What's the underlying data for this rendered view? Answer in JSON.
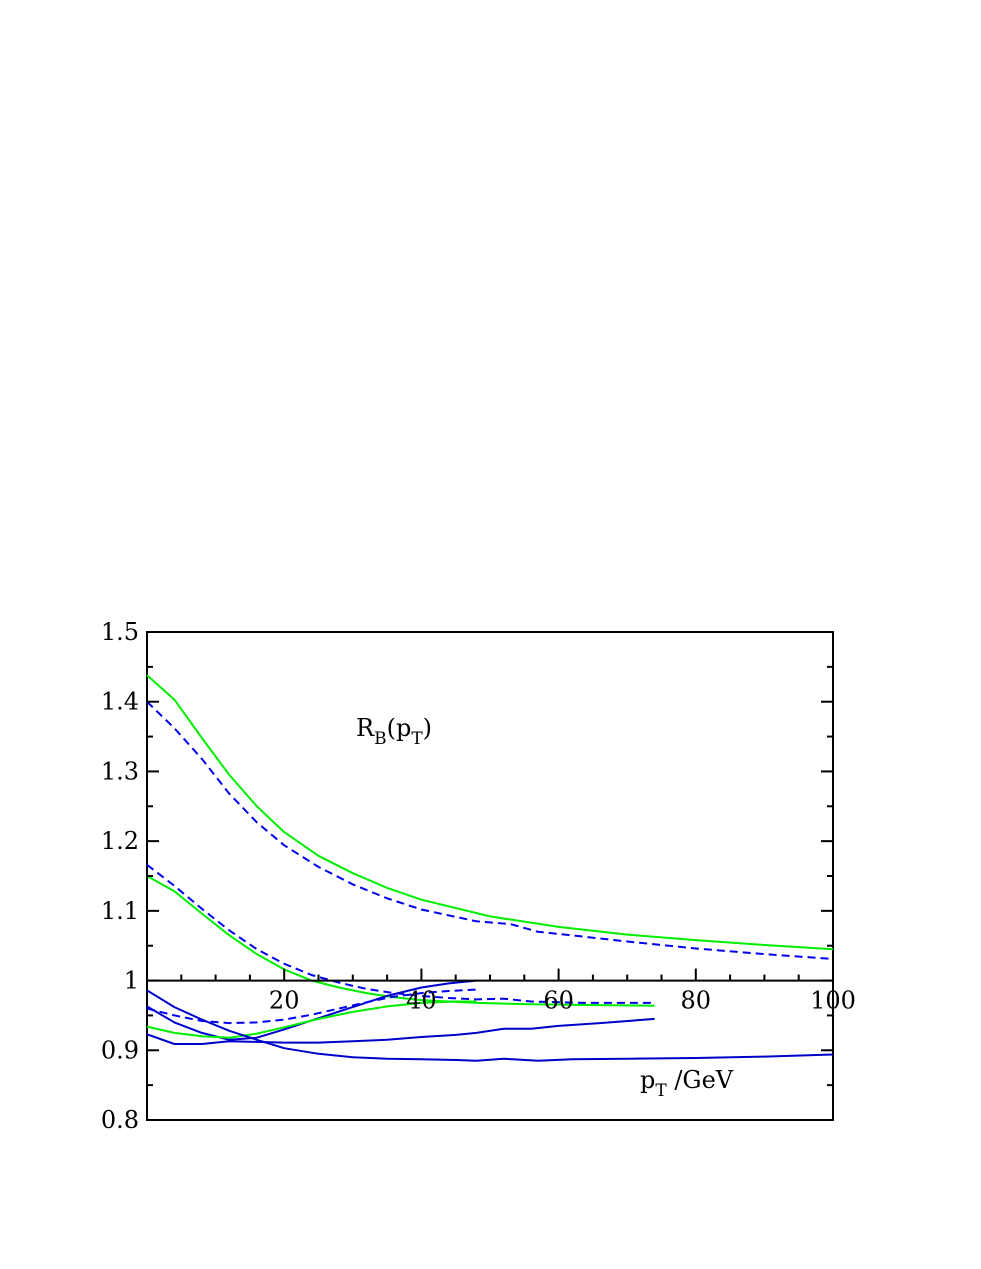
{
  "chart_data": {
    "type": "line",
    "title": "",
    "xlabel": {
      "main": "p",
      "sub": "T",
      "tail": " /GeV"
    },
    "ylabel": {
      "main": "R",
      "sub": "B",
      "open": "(p",
      "sub2": "T",
      "close": ")"
    },
    "xlim": [
      0,
      100
    ],
    "ylim": [
      0.8,
      1.5
    ],
    "x_axis_at_y": 1.0,
    "x_ticks": [
      20,
      40,
      60,
      80,
      100
    ],
    "x_tick_labels": [
      "20",
      "40",
      "60",
      "80",
      "100"
    ],
    "y_ticks": [
      0.8,
      0.9,
      1.0,
      1.1,
      1.2,
      1.3,
      1.4,
      1.5
    ],
    "y_tick_labels": [
      "0.8",
      "0.9",
      "1",
      "1.1",
      "1.2",
      "1.3",
      "1.4",
      "1.5"
    ],
    "grid": false,
    "legend": "none",
    "series": [
      {
        "color": "#00ee00",
        "style": "solid",
        "x": [
          0,
          4,
          8,
          12,
          16,
          20,
          25,
          30,
          35,
          40,
          50,
          60,
          70,
          80,
          90,
          100
        ],
        "y": [
          1.438,
          1.403,
          1.348,
          1.295,
          1.25,
          1.213,
          1.179,
          1.154,
          1.133,
          1.116,
          1.092,
          1.077,
          1.066,
          1.058,
          1.051,
          1.045
        ]
      },
      {
        "color": "#0000ee",
        "style": "dashed",
        "x": [
          0,
          4,
          8,
          12,
          16,
          20,
          25,
          30,
          35,
          40,
          48,
          53,
          57,
          60,
          70,
          80,
          90,
          100
        ],
        "y": [
          1.4,
          1.362,
          1.318,
          1.268,
          1.227,
          1.194,
          1.163,
          1.138,
          1.118,
          1.102,
          1.085,
          1.081,
          1.07,
          1.067,
          1.056,
          1.046,
          1.038,
          1.031
        ]
      },
      {
        "color": "#00ee00",
        "style": "solid",
        "x": [
          0,
          4,
          8,
          12,
          16,
          20,
          24,
          28,
          32,
          36,
          40,
          44,
          48,
          56,
          64,
          74
        ],
        "y": [
          1.15,
          1.128,
          1.096,
          1.065,
          1.038,
          1.016,
          1.0,
          0.99,
          0.982,
          0.976,
          0.972,
          0.97,
          0.968,
          0.966,
          0.965,
          0.964
        ]
      },
      {
        "color": "#0000ee",
        "style": "dashed",
        "x": [
          0,
          4,
          8,
          12,
          16,
          20,
          24,
          28,
          32,
          36,
          40,
          44,
          48,
          52,
          56,
          64,
          74
        ],
        "y": [
          1.166,
          1.136,
          1.103,
          1.072,
          1.045,
          1.024,
          1.008,
          0.997,
          0.988,
          0.982,
          0.978,
          0.975,
          0.973,
          0.974,
          0.97,
          0.968,
          0.968
        ]
      },
      {
        "color": "#0000cc",
        "style": "solid",
        "x": [
          0,
          4,
          8,
          12,
          16,
          20,
          25,
          30,
          35,
          40,
          44,
          48
        ],
        "y": [
          0.963,
          0.94,
          0.925,
          0.915,
          0.918,
          0.93,
          0.946,
          0.962,
          0.978,
          0.99,
          0.996,
          1.0
        ]
      },
      {
        "color": "#00ee00",
        "style": "solid",
        "x": [
          0,
          4,
          8,
          12,
          16,
          20,
          25,
          30,
          35,
          40,
          45,
          48
        ],
        "y": [
          0.934,
          0.925,
          0.92,
          0.918,
          0.924,
          0.933,
          0.945,
          0.955,
          0.963,
          0.968,
          0.97,
          0.97
        ]
      },
      {
        "color": "#0000ee",
        "style": "dashed",
        "x": [
          0,
          4,
          8,
          12,
          16,
          20,
          24,
          28,
          32,
          36,
          40,
          44,
          48
        ],
        "y": [
          0.96,
          0.95,
          0.942,
          0.939,
          0.94,
          0.944,
          0.951,
          0.96,
          0.969,
          0.977,
          0.982,
          0.985,
          0.987
        ]
      },
      {
        "color": "#0000cc",
        "style": "solid",
        "x": [
          0,
          4,
          8,
          12,
          16,
          20,
          25,
          30,
          35,
          40,
          45,
          48,
          52,
          56,
          60,
          66,
          74
        ],
        "y": [
          0.923,
          0.909,
          0.909,
          0.913,
          0.912,
          0.911,
          0.911,
          0.913,
          0.915,
          0.919,
          0.922,
          0.925,
          0.931,
          0.931,
          0.935,
          0.939,
          0.945
        ]
      },
      {
        "color": "#0000cc",
        "style": "solid",
        "x": [
          0,
          4,
          8,
          12,
          16,
          20,
          25,
          30,
          35,
          40,
          45,
          48,
          52,
          57,
          62,
          70,
          80,
          90,
          100
        ],
        "y": [
          0.986,
          0.962,
          0.944,
          0.928,
          0.915,
          0.903,
          0.895,
          0.89,
          0.888,
          0.887,
          0.886,
          0.885,
          0.888,
          0.885,
          0.887,
          0.888,
          0.889,
          0.891,
          0.894
        ]
      }
    ]
  }
}
